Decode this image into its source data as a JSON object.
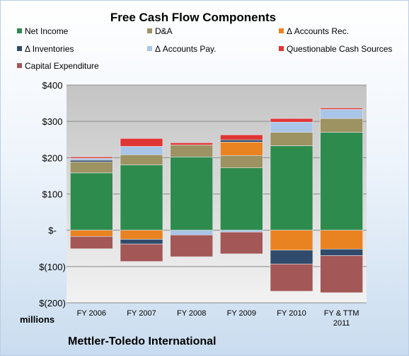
{
  "chart_data": {
    "type": "bar",
    "stacked": true,
    "title": "Free Cash Flow Components",
    "company": "Mettler-Toledo International",
    "units_label": "millions",
    "categories": [
      "FY 2006",
      "FY 2007",
      "FY 2008",
      "FY 2009",
      "FY 2010",
      "FY & TTM|2011"
    ],
    "ylim": [
      -200,
      400
    ],
    "yticks": [
      400,
      300,
      200,
      100,
      0,
      -100,
      -200
    ],
    "ytick_labels": [
      "$400",
      "$300",
      "$200",
      "$100",
      "$-",
      "$(100)",
      "$(200)"
    ],
    "grid": true,
    "legend_position": "top",
    "series": [
      {
        "name": "Net Income",
        "color": "#2e8b4e",
        "values": [
          158,
          180,
          202,
          172,
          233,
          270
        ]
      },
      {
        "name": "D&A",
        "color": "#9c9262",
        "values": [
          30,
          28,
          33,
          34,
          37,
          38
        ]
      },
      {
        "name": "Δ Accounts Rec.",
        "color": "#e98322",
        "values": [
          -17,
          -25,
          0,
          37,
          -55,
          -52
        ]
      },
      {
        "name": "Δ Inventories",
        "color": "#2f4a6b",
        "values": [
          5,
          -13,
          0,
          6,
          -38,
          -18
        ]
      },
      {
        "name": "Δ Accounts Pay.",
        "color": "#a9c5e8",
        "values": [
          5,
          23,
          -13,
          -5,
          28,
          25
        ]
      },
      {
        "name": "Questionable Cash Sources",
        "color": "#e03535",
        "values": [
          4,
          22,
          6,
          14,
          10,
          4
        ]
      },
      {
        "name": "Capital Expenditure",
        "color": "#a35757",
        "values": [
          -34,
          -48,
          -60,
          -60,
          -75,
          -102
        ]
      }
    ]
  }
}
